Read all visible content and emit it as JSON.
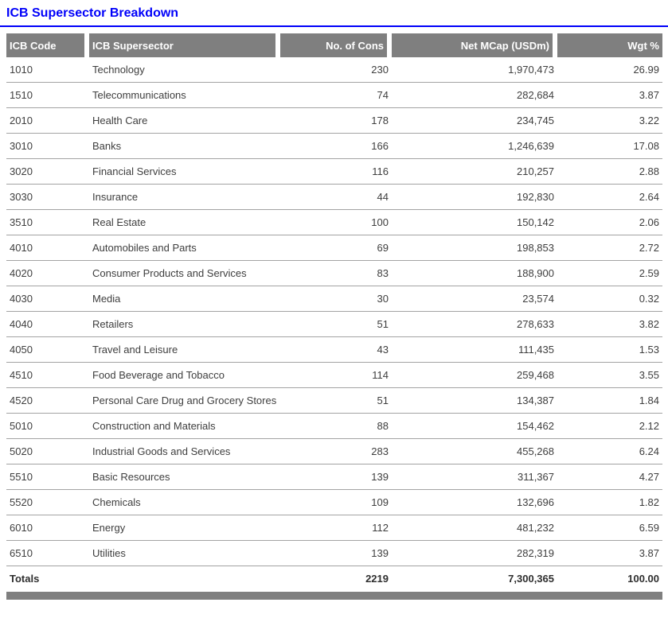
{
  "title": "ICB Supersector Breakdown",
  "colors": {
    "accent_blue": "#0000fa",
    "header_bg": "#7f7f7f",
    "header_text": "#ffffff",
    "body_text": "#3e3e3e",
    "totals_text": "#2e2e2e",
    "divider": "#a3a3a3"
  },
  "table": {
    "columns": [
      "ICB Code",
      "ICB Supersector",
      "No. of Cons",
      "Net MCap (USDm)",
      "Wgt %"
    ],
    "rows": [
      [
        "1010",
        "Technology",
        "230",
        "1,970,473",
        "26.99"
      ],
      [
        "1510",
        "Telecommunications",
        "74",
        "282,684",
        "3.87"
      ],
      [
        "2010",
        "Health Care",
        "178",
        "234,745",
        "3.22"
      ],
      [
        "3010",
        "Banks",
        "166",
        "1,246,639",
        "17.08"
      ],
      [
        "3020",
        "Financial Services",
        "116",
        "210,257",
        "2.88"
      ],
      [
        "3030",
        "Insurance",
        "44",
        "192,830",
        "2.64"
      ],
      [
        "3510",
        "Real Estate",
        "100",
        "150,142",
        "2.06"
      ],
      [
        "4010",
        "Automobiles and Parts",
        "69",
        "198,853",
        "2.72"
      ],
      [
        "4020",
        "Consumer Products and Services",
        "83",
        "188,900",
        "2.59"
      ],
      [
        "4030",
        "Media",
        "30",
        "23,574",
        "0.32"
      ],
      [
        "4040",
        "Retailers",
        "51",
        "278,633",
        "3.82"
      ],
      [
        "4050",
        "Travel and Leisure",
        "43",
        "111,435",
        "1.53"
      ],
      [
        "4510",
        "Food Beverage and Tobacco",
        "114",
        "259,468",
        "3.55"
      ],
      [
        "4520",
        "Personal Care Drug and Grocery Stores",
        "51",
        "134,387",
        "1.84"
      ],
      [
        "5010",
        "Construction and Materials",
        "88",
        "154,462",
        "2.12"
      ],
      [
        "5020",
        "Industrial Goods and Services",
        "283",
        "455,268",
        "6.24"
      ],
      [
        "5510",
        "Basic Resources",
        "139",
        "311,367",
        "4.27"
      ],
      [
        "5520",
        "Chemicals",
        "109",
        "132,696",
        "1.82"
      ],
      [
        "6010",
        "Energy",
        "112",
        "481,232",
        "6.59"
      ],
      [
        "6510",
        "Utilities",
        "139",
        "282,319",
        "3.87"
      ]
    ],
    "totals_row": [
      "Totals",
      "",
      "2219",
      "7,300,365",
      "100.00"
    ]
  }
}
